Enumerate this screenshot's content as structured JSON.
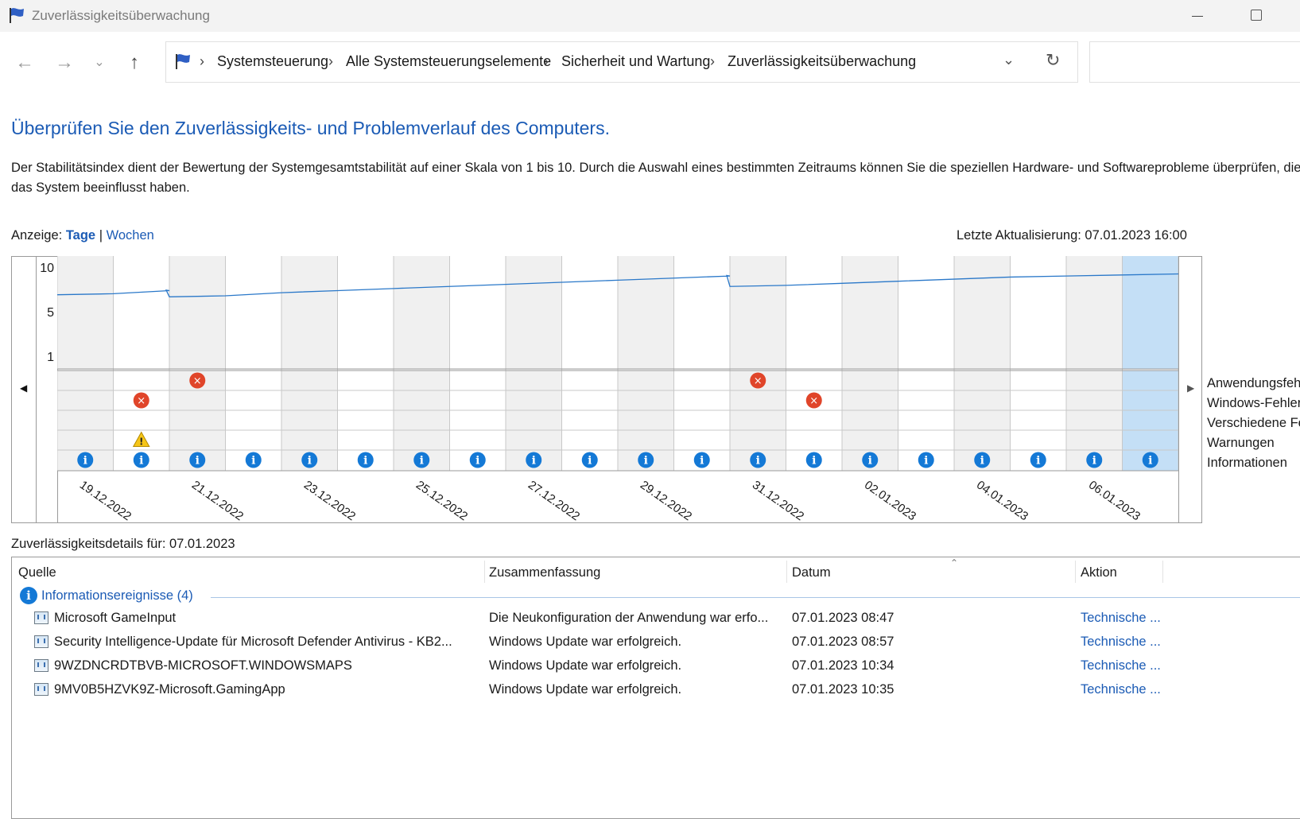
{
  "window": {
    "title": "Zuverlässigkeitsüberwachung"
  },
  "breadcrumb": [
    "Systemsteuerung",
    "Alle Systemsteuerungselemente",
    "Sicherheit und Wartung",
    "Zuverlässigkeitsüberwachung"
  ],
  "heading": "Überprüfen Sie den Zuverlässigkeits- und Problemverlauf des Computers.",
  "description": "Der Stabilitätsindex dient der Bewertung der Systemgesamtstabilität auf einer Skala von 1 bis 10. Durch die Auswahl eines bestimmten Zeitraums können Sie die speziellen Hardware- und Softwareprobleme überprüfen, die das System beeinflusst haben.",
  "view": {
    "label": "Anzeige:",
    "days": "Tage",
    "separator": "|",
    "weeks": "Wochen"
  },
  "last_update": "Letzte Aktualisierung: 07.01.2023 16:00",
  "legend": [
    "Anwendungsfehler",
    "Windows-Fehler",
    "Verschiedene Fehler",
    "Warnungen",
    "Informationen"
  ],
  "chart_data": {
    "type": "line",
    "y_ticks": [
      "10",
      "5",
      "1"
    ],
    "ylim": [
      1,
      10
    ],
    "days": [
      "19.12.2022",
      "20.12.2022",
      "21.12.2022",
      "22.12.2022",
      "23.12.2022",
      "24.12.2022",
      "25.12.2022",
      "26.12.2022",
      "27.12.2022",
      "28.12.2022",
      "29.12.2022",
      "30.12.2022",
      "31.12.2022",
      "01.01.2023",
      "02.01.2023",
      "03.01.2023",
      "04.01.2023",
      "05.01.2023",
      "06.01.2023",
      "07.01.2023"
    ],
    "x_tick_labels": [
      "19.12.2022",
      "21.12.2022",
      "23.12.2022",
      "25.12.2022",
      "27.12.2022",
      "29.12.2022",
      "31.12.2022",
      "02.01.2023",
      "04.01.2023",
      "06.01.2023"
    ],
    "stability_index": [
      7.2,
      7.5,
      7.0,
      7.3,
      7.5,
      7.7,
      7.9,
      8.1,
      8.3,
      8.5,
      8.7,
      8.9,
      8.0,
      8.2,
      8.4,
      8.6,
      8.8,
      8.9,
      9.0,
      9.1
    ],
    "selected_day": "07.01.2023",
    "events": {
      "application_errors": [
        "21.12.2022",
        "31.12.2022"
      ],
      "windows_errors": [
        "20.12.2022",
        "01.01.2023"
      ],
      "misc_errors": [],
      "warnings": [
        "20.12.2022"
      ],
      "information": [
        "19.12.2022",
        "20.12.2022",
        "21.12.2022",
        "22.12.2022",
        "23.12.2022",
        "24.12.2022",
        "25.12.2022",
        "26.12.2022",
        "27.12.2022",
        "28.12.2022",
        "29.12.2022",
        "30.12.2022",
        "31.12.2022",
        "01.01.2023",
        "02.01.2023",
        "03.01.2023",
        "04.01.2023",
        "05.01.2023",
        "06.01.2023",
        "07.01.2023"
      ]
    }
  },
  "details": {
    "label": "Zuverlässigkeitsdetails für: 07.01.2023",
    "columns": {
      "source": "Quelle",
      "summary": "Zusammenfassung",
      "date": "Datum",
      "action": "Aktion"
    },
    "group": "Informationsereignisse (4)",
    "rows": [
      {
        "source": "Microsoft GameInput",
        "summary": "Die Neukonfiguration der Anwendung war erfo...",
        "date": "07.01.2023 08:47",
        "action": "Technische ..."
      },
      {
        "source": "Security Intelligence-Update für Microsoft Defender Antivirus - KB2...",
        "summary": "Windows Update war erfolgreich.",
        "date": "07.01.2023 08:57",
        "action": "Technische ..."
      },
      {
        "source": "9WZDNCRDTBVB-MICROSOFT.WINDOWSMAPS",
        "summary": "Windows Update war erfolgreich.",
        "date": "07.01.2023 10:34",
        "action": "Technische ..."
      },
      {
        "source": "9MV0B5HZVK9Z-Microsoft.GamingApp",
        "summary": "Windows Update war erfolgreich.",
        "date": "07.01.2023 10:35",
        "action": "Technische ..."
      }
    ]
  }
}
